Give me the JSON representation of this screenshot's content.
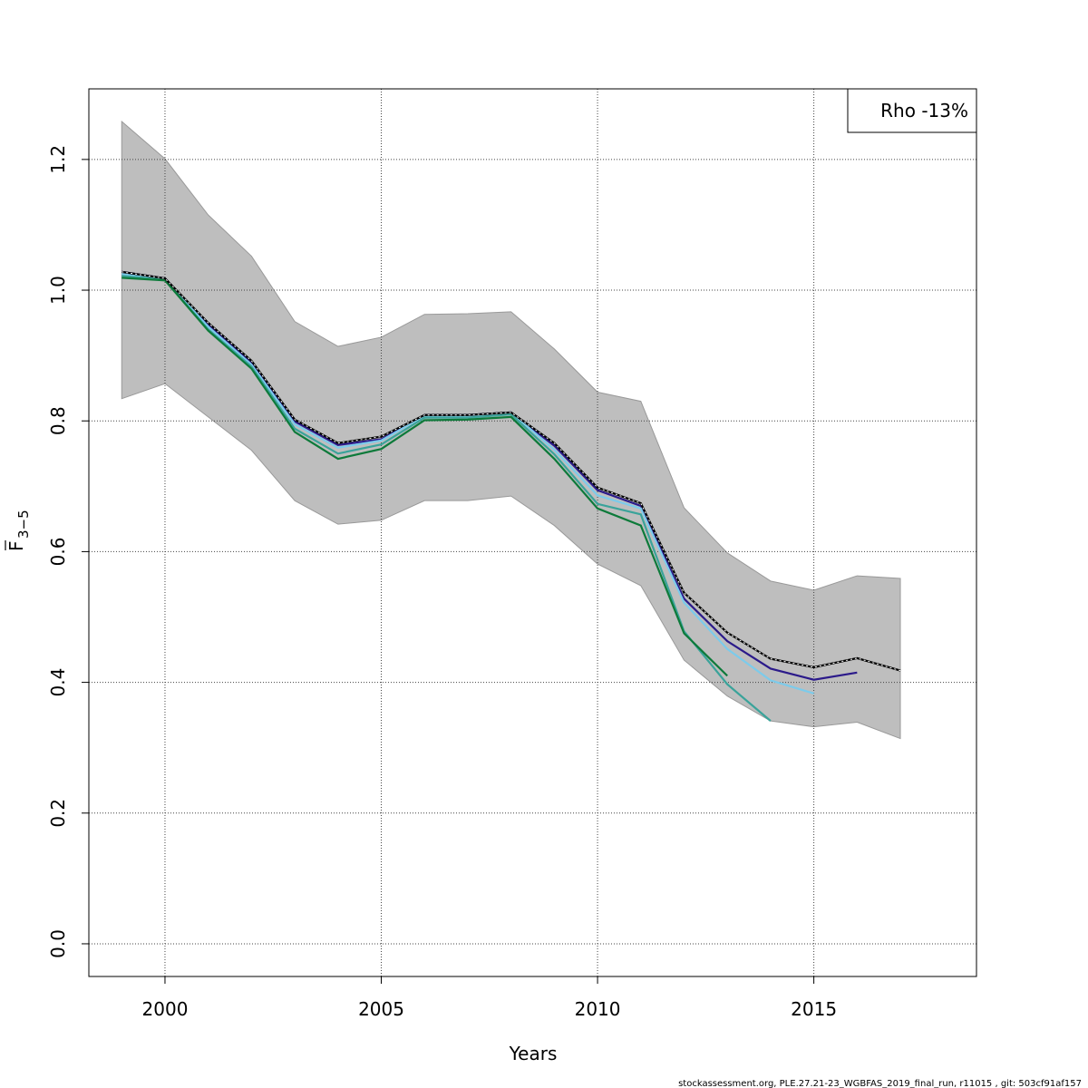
{
  "chart_data": {
    "type": "line",
    "xlabel": "Years",
    "ylabel": "F",
    "ylabel_subscript": "3−5",
    "annotation": "Rho -13%",
    "footer": "stockassessment.org, PLE.27.21-23_WGBFAS_2019_final_run, r11015 , git: 503cf91af157",
    "x": [
      1999,
      2000,
      2001,
      2002,
      2003,
      2004,
      2005,
      2006,
      2007,
      2008,
      2009,
      2010,
      2011,
      2012,
      2013,
      2014,
      2015,
      2016,
      2017
    ],
    "band": {
      "color": "#bebebe",
      "upper": [
        1.258,
        1.201,
        1.115,
        1.052,
        0.952,
        0.914,
        0.928,
        0.963,
        0.964,
        0.967,
        0.91,
        0.844,
        0.83,
        0.667,
        0.598,
        0.555,
        0.541,
        0.563,
        0.559
      ],
      "lower": [
        0.834,
        0.857,
        0.806,
        0.755,
        0.678,
        0.642,
        0.648,
        0.678,
        0.678,
        0.685,
        0.64,
        0.581,
        0.548,
        0.434,
        0.379,
        0.341,
        0.332,
        0.339,
        0.314
      ]
    },
    "series": [
      {
        "color": "#2b1a8a",
        "values": [
          1.028,
          1.018,
          0.948,
          0.89,
          0.799,
          0.763,
          0.772,
          0.809,
          0.809,
          0.813,
          0.762,
          0.694,
          0.67,
          0.528,
          0.463,
          0.421,
          0.404,
          0.415,
          null
        ]
      },
      {
        "color": "#7ccbeb",
        "values": [
          1.025,
          1.017,
          0.944,
          0.886,
          0.795,
          0.759,
          0.77,
          0.808,
          0.808,
          0.813,
          0.756,
          0.686,
          0.666,
          0.522,
          0.451,
          0.403,
          0.383,
          null,
          null
        ]
      },
      {
        "color": "#3aa39a",
        "values": [
          1.022,
          1.016,
          0.94,
          0.883,
          0.788,
          0.75,
          0.764,
          0.805,
          0.805,
          0.81,
          0.749,
          0.673,
          0.657,
          0.478,
          0.397,
          0.341,
          null,
          null,
          null
        ]
      },
      {
        "color": "#0d7a3a",
        "values": [
          1.019,
          1.015,
          0.938,
          0.88,
          0.783,
          0.742,
          0.757,
          0.801,
          0.802,
          0.806,
          0.742,
          0.666,
          0.64,
          0.475,
          0.41,
          null,
          null,
          null,
          null
        ]
      },
      {
        "color": "#000000",
        "dashed": true,
        "values": [
          1.028,
          1.018,
          0.95,
          0.892,
          0.802,
          0.766,
          0.776,
          0.809,
          0.809,
          0.813,
          0.766,
          0.698,
          0.674,
          0.537,
          0.476,
          0.436,
          0.423,
          0.437,
          0.418
        ]
      }
    ],
    "xlim": [
      1998.24,
      2018.76
    ],
    "ylim": [
      -0.05,
      1.308
    ],
    "xticks": [
      2000,
      2005,
      2010,
      2015
    ],
    "yticks": [
      {
        "value": 0,
        "label": "0.0"
      },
      0.2,
      0.4,
      0.6,
      0.8,
      {
        "value": 1,
        "label": "1.0"
      },
      1.2
    ],
    "grid": true
  }
}
